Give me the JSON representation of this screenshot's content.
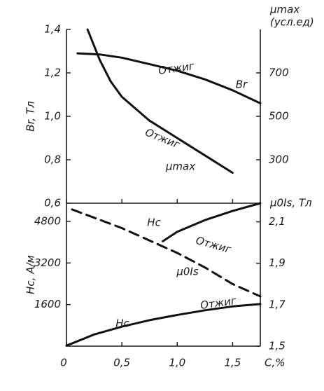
{
  "chart_data": [
    {
      "type": "line",
      "ylabel": "Br, Тл",
      "y2label": [
        "μmax",
        "(усл.ед)"
      ],
      "xlim": [
        0,
        1.75
      ],
      "ylim": [
        0.6,
        1.4
      ],
      "yticks": [
        {
          "value": 0.6,
          "label": "0,6"
        },
        {
          "value": 0.8,
          "label": "0,8"
        },
        {
          "value": 1.0,
          "label": "1,0"
        },
        {
          "value": 1.2,
          "label": "1,2"
        },
        {
          "value": 1.4,
          "label": "1,4"
        }
      ],
      "y2lim": [
        100,
        900
      ],
      "y2ticks": [
        300,
        500,
        700
      ],
      "annotations": [
        "Отжиг",
        "Отжиг"
      ],
      "series": [
        {
          "name": "Br",
          "color": "#111111",
          "dash": false,
          "x": [
            0.1,
            0.3,
            0.5,
            0.75,
            1.0,
            1.25,
            1.5,
            1.75
          ],
          "values": [
            1.29,
            1.285,
            1.27,
            1.24,
            1.21,
            1.17,
            1.12,
            1.06
          ]
        },
        {
          "name": "μmax",
          "color": "#111111",
          "dash": false,
          "axis": "y2",
          "x": [
            0.19,
            0.3,
            0.4,
            0.5,
            0.75,
            1.0,
            1.25,
            1.5
          ],
          "values": [
            900,
            760,
            660,
            590,
            480,
            400,
            320,
            240
          ]
        }
      ]
    },
    {
      "type": "line",
      "ylabel": "Hc, A/м",
      "y2label": [
        "μ0Is, Тл"
      ],
      "xlabel": "C,%",
      "xlim": [
        0,
        1.75
      ],
      "xticks": [
        {
          "value": 0,
          "label": "0"
        },
        {
          "value": 0.5,
          "label": "0,5"
        },
        {
          "value": 1.0,
          "label": "1,0"
        },
        {
          "value": 1.5,
          "label": "1,5"
        }
      ],
      "ylim": [
        0,
        5500
      ],
      "yticks": [
        1600,
        3200,
        4800
      ],
      "y2lim": [
        1.5,
        2.19
      ],
      "y2ticks": [
        {
          "value": 1.5,
          "label": "1,5"
        },
        {
          "value": 1.7,
          "label": "1,7"
        },
        {
          "value": 1.9,
          "label": "1,9"
        },
        {
          "value": 2.1,
          "label": "2,1"
        }
      ],
      "annotations": [
        "Отжиг",
        "Отжиг"
      ],
      "series": [
        {
          "name": "Hc",
          "color": "#111111",
          "dash": false,
          "x": [
            0.87,
            1.0,
            1.25,
            1.5,
            1.75
          ],
          "values": [
            4040,
            4400,
            4850,
            5200,
            5500
          ]
        },
        {
          "name": "μ0Is",
          "color": "#111111",
          "dash": true,
          "axis": "y2",
          "x": [
            0.05,
            0.25,
            0.5,
            0.75,
            1.0,
            1.25,
            1.5,
            1.75
          ],
          "values": [
            2.16,
            2.12,
            2.07,
            2.01,
            1.95,
            1.88,
            1.8,
            1.74
          ]
        },
        {
          "name": "Hc",
          "color": "#111111",
          "dash": false,
          "x": [
            0,
            0.25,
            0.5,
            0.75,
            1.0,
            1.25,
            1.5,
            1.75
          ],
          "values": [
            20,
            450,
            750,
            1000,
            1200,
            1380,
            1530,
            1620
          ]
        }
      ]
    }
  ]
}
